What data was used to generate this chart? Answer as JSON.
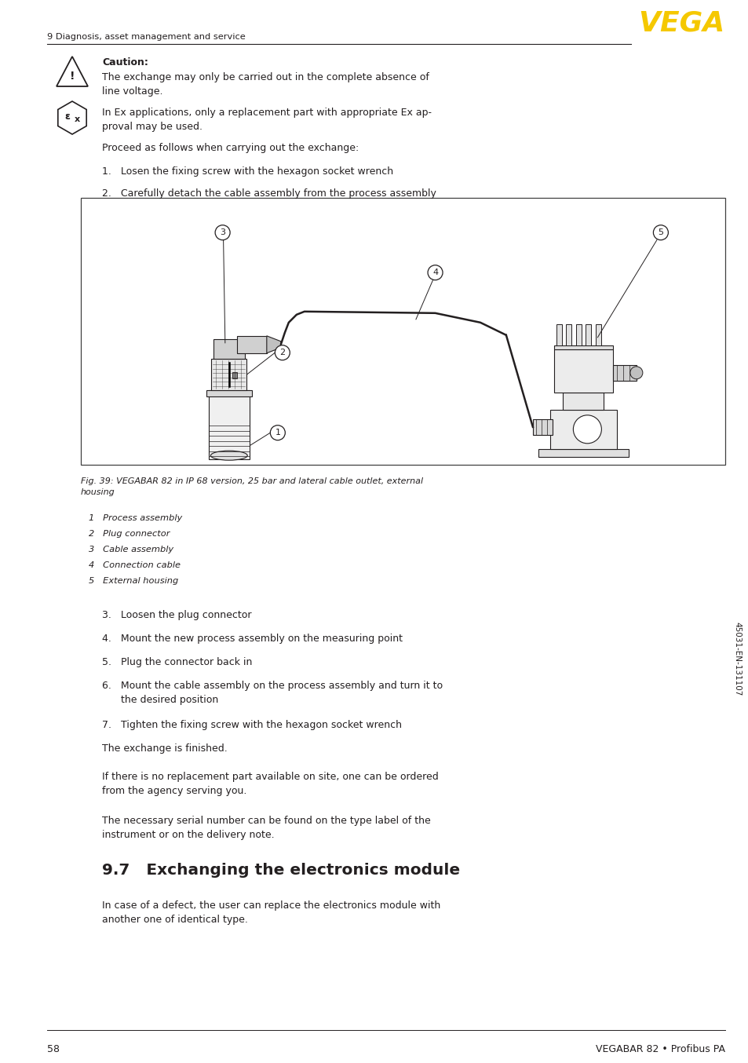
{
  "page_width": 9.54,
  "page_height": 13.54,
  "bg_color": "#ffffff",
  "header_text": "9 Diagnosis, asset management and service",
  "vega_logo": "VEGA",
  "vega_color": "#F5C800",
  "footer_page": "58",
  "footer_right": "VEGABAR 82 • Profibus PA",
  "caution_bold": "Caution:",
  "caution_text": "The exchange may only be carried out in the complete absence of\nline voltage.",
  "ex_text": "In Ex applications, only a replacement part with appropriate Ex ap-\nproval may be used.",
  "proceed_text": "Proceed as follows when carrying out the exchange:",
  "step1": "1.   Losen the fixing screw with the hexagon socket wrench",
  "step2": "2.   Carefully detach the cable assembly from the process assembly",
  "fig_caption": "Fig. 39: VEGABAR 82 in IP 68 version, 25 bar and lateral cable outlet, external\nhousing",
  "legend_items": [
    "1   Process assembly",
    "2   Plug connector",
    "3   Cable assembly",
    "4   Connection cable",
    "5   External housing"
  ],
  "step3": "3.   Loosen the plug connector",
  "step4": "4.   Mount the new process assembly on the measuring point",
  "step5": "5.   Plug the connector back in",
  "step6": "6.   Mount the cable assembly on the process assembly and turn it to\n      the desired position",
  "step7": "7.   Tighten the fixing screw with the hexagon socket wrench",
  "exchange_done": "The exchange is finished.",
  "order_text": "If there is no replacement part available on site, one can be ordered\nfrom the agency serving you.",
  "serial_text": "The necessary serial number can be found on the type label of the\ninstrument or on the delivery note.",
  "section_title": "9.7   Exchanging the electronics module",
  "section_text": "In case of a defect, the user can replace the electronics module with\nanother one of identical type.",
  "side_text": "45031-EN-131107",
  "text_color": "#231f20"
}
